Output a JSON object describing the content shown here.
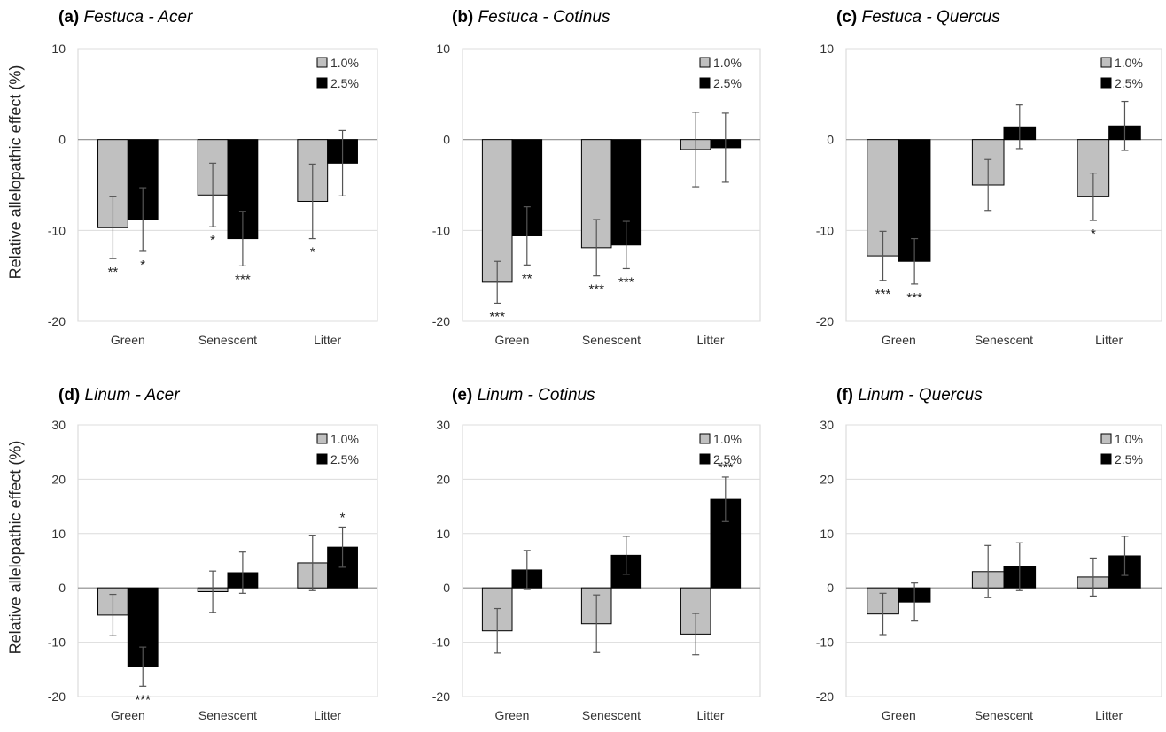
{
  "figure": {
    "ylabel": "Relative allelopathic effect (%)"
  },
  "chart_data": [
    {
      "type": "bar",
      "panel": "(a)",
      "title": "Festuca - Acer",
      "categories": [
        "Green",
        "Senescent",
        "Litter"
      ],
      "ylim": [
        -20,
        10
      ],
      "yticks": [
        10,
        0,
        -10,
        -20
      ],
      "legend": "top-right",
      "series": [
        {
          "name": "1.0%",
          "color": "#c0c0c0",
          "values": [
            -9.7,
            -6.1,
            -6.8
          ],
          "errors": [
            3.4,
            3.5,
            4.1
          ],
          "signif": [
            "**",
            "*",
            "*"
          ]
        },
        {
          "name": "2.5%",
          "color": "#000000",
          "values": [
            -8.8,
            -10.9,
            -2.6
          ],
          "errors": [
            3.5,
            3.0,
            3.6
          ],
          "signif": [
            "*",
            "***",
            ""
          ]
        }
      ]
    },
    {
      "type": "bar",
      "panel": "(b)",
      "title": "Festuca - Cotinus",
      "categories": [
        "Green",
        "Senescent",
        "Litter"
      ],
      "ylim": [
        -20,
        10
      ],
      "yticks": [
        10,
        0,
        -10,
        -20
      ],
      "legend": "top-right",
      "series": [
        {
          "name": "1.0%",
          "color": "#c0c0c0",
          "values": [
            -15.7,
            -11.9,
            -1.1
          ],
          "errors": [
            2.3,
            3.1,
            4.1
          ],
          "signif": [
            "***",
            "***",
            ""
          ]
        },
        {
          "name": "2.5%",
          "color": "#000000",
          "values": [
            -10.6,
            -11.6,
            -0.9
          ],
          "errors": [
            3.2,
            2.6,
            3.8
          ],
          "signif": [
            "**",
            "***",
            ""
          ]
        }
      ]
    },
    {
      "type": "bar",
      "panel": "(c)",
      "title": "Festuca - Quercus",
      "categories": [
        "Green",
        "Senescent",
        "Litter"
      ],
      "ylim": [
        -20,
        10
      ],
      "yticks": [
        10,
        0,
        -10,
        -20
      ],
      "legend": "top-right",
      "series": [
        {
          "name": "1.0%",
          "color": "#c0c0c0",
          "values": [
            -12.8,
            -5.0,
            -6.3
          ],
          "errors": [
            2.7,
            2.8,
            2.6
          ],
          "signif": [
            "***",
            "",
            "*"
          ]
        },
        {
          "name": "2.5%",
          "color": "#000000",
          "values": [
            -13.4,
            1.4,
            1.5
          ],
          "errors": [
            2.5,
            2.4,
            2.7
          ],
          "signif": [
            "***",
            "",
            ""
          ]
        }
      ]
    },
    {
      "type": "bar",
      "panel": "(d)",
      "title": "Linum - Acer",
      "categories": [
        "Green",
        "Senescent",
        "Litter"
      ],
      "ylim": [
        -20,
        30
      ],
      "yticks": [
        30,
        20,
        10,
        0,
        -10,
        -20
      ],
      "legend": "top-right",
      "series": [
        {
          "name": "1.0%",
          "color": "#c0c0c0",
          "values": [
            -5.0,
            -0.7,
            4.6
          ],
          "errors": [
            3.8,
            3.8,
            5.1
          ],
          "signif": [
            "",
            "",
            ""
          ]
        },
        {
          "name": "2.5%",
          "color": "#000000",
          "values": [
            -14.5,
            2.8,
            7.5
          ],
          "errors": [
            3.6,
            3.8,
            3.7
          ],
          "signif": [
            "***",
            "",
            "*"
          ]
        }
      ]
    },
    {
      "type": "bar",
      "panel": "(e)",
      "title": "Linum - Cotinus",
      "categories": [
        "Green",
        "Senescent",
        "Litter"
      ],
      "ylim": [
        -20,
        30
      ],
      "yticks": [
        30,
        20,
        10,
        0,
        -10,
        -20
      ],
      "legend": "top-right",
      "series": [
        {
          "name": "1.0%",
          "color": "#c0c0c0",
          "values": [
            -7.9,
            -6.6,
            -8.5
          ],
          "errors": [
            4.1,
            5.3,
            3.8
          ],
          "signif": [
            "",
            "",
            ""
          ]
        },
        {
          "name": "2.5%",
          "color": "#000000",
          "values": [
            3.3,
            6.0,
            16.3
          ],
          "errors": [
            3.6,
            3.5,
            4.1
          ],
          "signif": [
            "",
            "",
            "***"
          ]
        }
      ]
    },
    {
      "type": "bar",
      "panel": "(f)",
      "title": "Linum - Quercus",
      "categories": [
        "Green",
        "Senescent",
        "Litter"
      ],
      "ylim": [
        -20,
        30
      ],
      "yticks": [
        30,
        20,
        10,
        0,
        -10,
        -20
      ],
      "legend": "top-right",
      "series": [
        {
          "name": "1.0%",
          "color": "#c0c0c0",
          "values": [
            -4.8,
            3.0,
            2.0
          ],
          "errors": [
            3.8,
            4.8,
            3.5
          ],
          "signif": [
            "",
            "",
            ""
          ]
        },
        {
          "name": "2.5%",
          "color": "#000000",
          "values": [
            -2.6,
            3.9,
            5.9
          ],
          "errors": [
            3.5,
            4.4,
            3.6
          ],
          "signif": [
            "",
            "",
            ""
          ]
        }
      ]
    }
  ]
}
